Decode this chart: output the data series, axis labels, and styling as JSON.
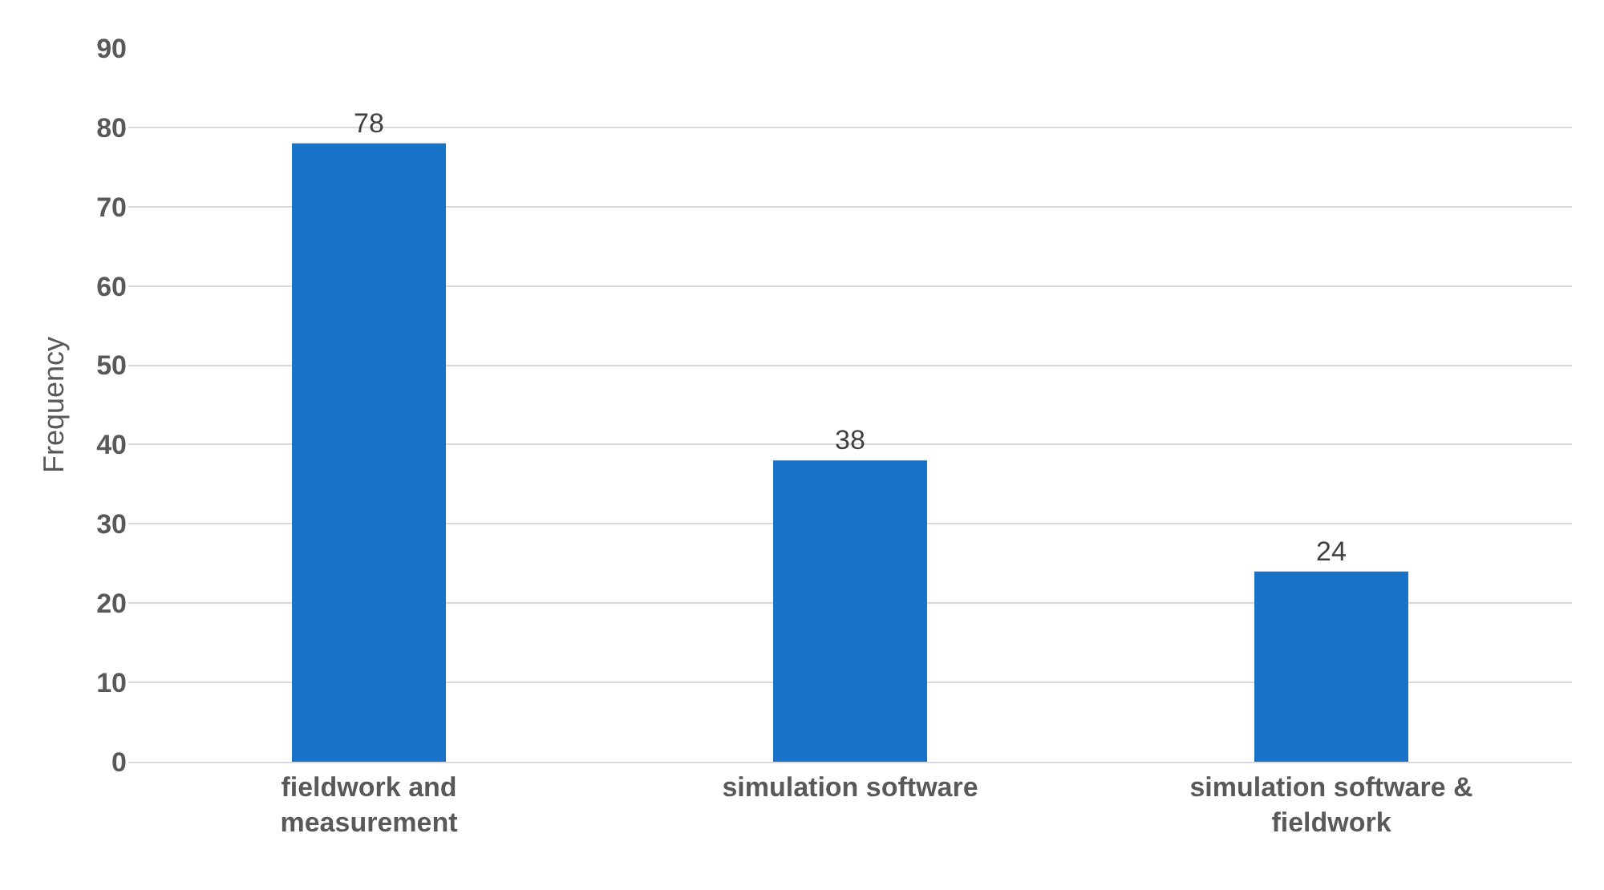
{
  "chart_data": {
    "type": "bar",
    "ylabel": "Frequency",
    "categories": [
      "fieldwork and measurement",
      "simulation software",
      "simulation software & fieldwork"
    ],
    "values": [
      78,
      38,
      24
    ],
    "color": "#1872c8",
    "ylim": [
      0,
      90
    ],
    "yticks": [
      0,
      10,
      20,
      30,
      40,
      50,
      60,
      70,
      80,
      90
    ],
    "grid": "y",
    "data_labels": true
  }
}
